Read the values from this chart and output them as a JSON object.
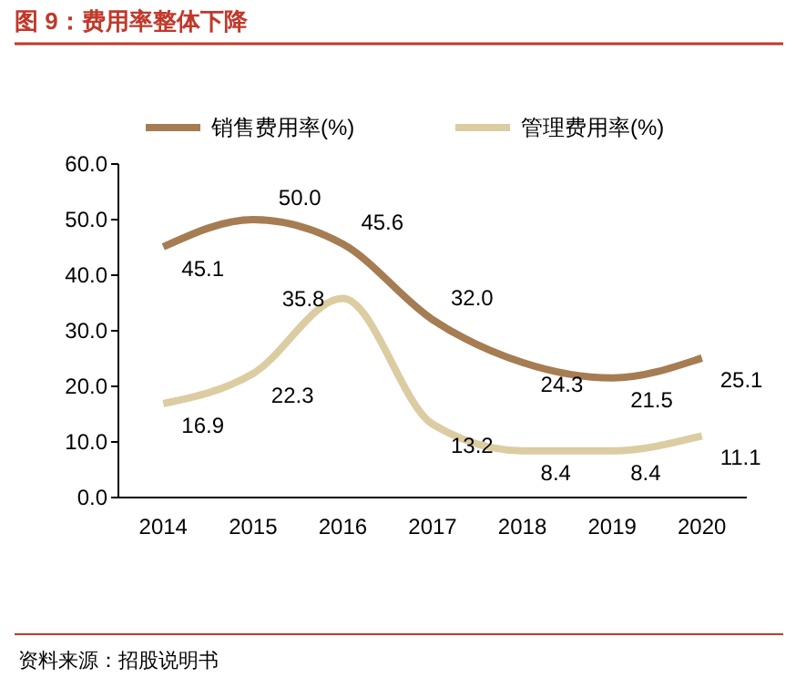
{
  "chart_data": {
    "type": "line",
    "title": "图 9：费用率整体下降",
    "categories": [
      "2014",
      "2015",
      "2016",
      "2017",
      "2018",
      "2019",
      "2020"
    ],
    "series": [
      {
        "name": "销售费用率(%)",
        "color": "#a67c52",
        "values": [
          45.1,
          50.0,
          45.6,
          32.0,
          24.3,
          21.5,
          25.1
        ],
        "value_labels": [
          "45.1",
          "50.0",
          "45.6",
          "32.0",
          "24.3",
          "21.5",
          "25.1"
        ]
      },
      {
        "name": "管理费用率(%)",
        "color": "#dccca2",
        "values": [
          16.9,
          22.3,
          35.8,
          13.2,
          8.4,
          8.4,
          11.1
        ],
        "value_labels": [
          "16.9",
          "22.3",
          "35.8",
          "13.2",
          "8.4",
          "8.4",
          "11.1"
        ]
      }
    ],
    "ylim": [
      0,
      60
    ],
    "yticks": [
      {
        "value": 0,
        "label": "0.0"
      },
      {
        "value": 10,
        "label": "10.0"
      },
      {
        "value": 20,
        "label": "20.0"
      },
      {
        "value": 30,
        "label": "30.0"
      },
      {
        "value": 40,
        "label": "40.0"
      },
      {
        "value": 50,
        "label": "50.0"
      },
      {
        "value": 60,
        "label": "60.0"
      }
    ],
    "grid": false,
    "legend": "top",
    "marker": "none",
    "line_style": "solid",
    "annotations": [
      "资料来源：招股说明书"
    ]
  }
}
